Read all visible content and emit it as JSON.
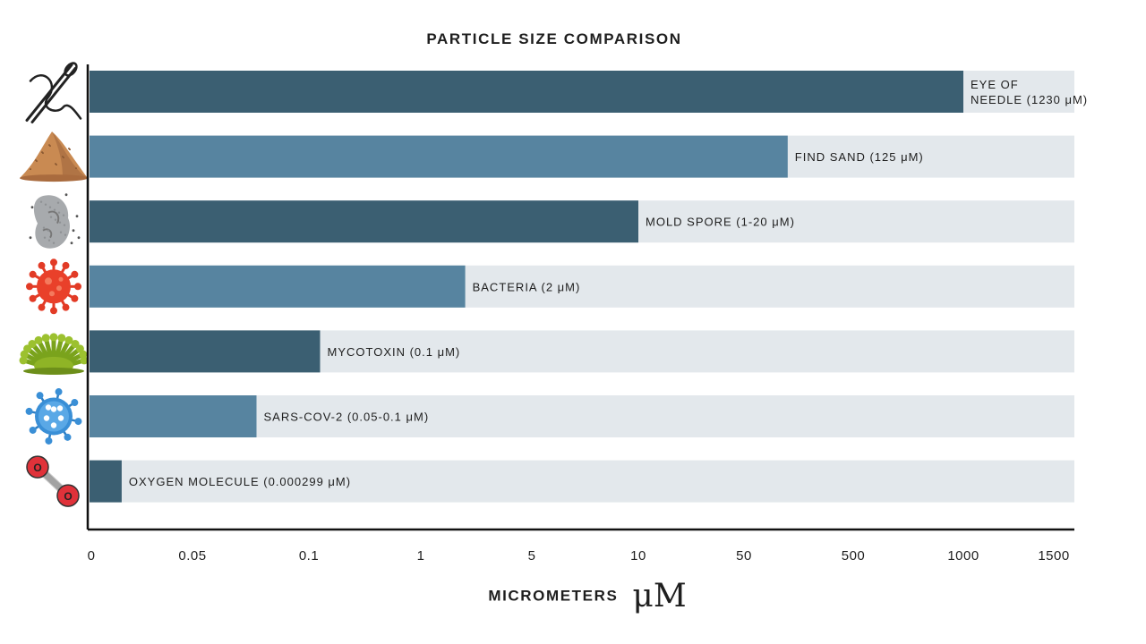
{
  "colors": {
    "dark": "#3b5f72",
    "light": "#5784a0",
    "track": "#e3e8ec",
    "axis": "#111111"
  },
  "chart_data": {
    "type": "bar",
    "orientation": "horizontal",
    "title": "PARTICLE SIZE COMPARISON",
    "xlabel": "MICROMETERS",
    "xunit": "μM",
    "ticks": [
      "0",
      "0.05",
      "0.1",
      "1",
      "5",
      "10",
      "50",
      "500",
      "1000",
      "1500"
    ],
    "xlim": [
      0,
      1500
    ],
    "scale": "ordinal-ticks",
    "categories": [
      "EYE OF NEEDLE (1230 μM)",
      "FIND SAND (125 μM)",
      "MOLD SPORE (1-20 μM)",
      "BACTERIA (2 μM)",
      "MYCOTOXIN (0.1 μM)",
      "SARS-COV-2 (0.05-0.1 μM)",
      "OXYGEN MOLECULE (0.000299 μM)"
    ],
    "bars": [
      {
        "label_lines": [
          "EYE OF",
          "NEEDLE (1230 μM)"
        ],
        "value": 1230,
        "tick_position": 8.0,
        "shade": "dark",
        "icon": "needle-thread-icon"
      },
      {
        "label_lines": [
          "FIND SAND (125 μM)"
        ],
        "value": 125,
        "tick_position": 6.4,
        "shade": "light",
        "icon": "sand-pile-icon"
      },
      {
        "label_lines": [
          "MOLD SPORE (1-20 μM)"
        ],
        "value": 20,
        "tick_position": 5.0,
        "shade": "dark",
        "icon": "mold-spore-icon"
      },
      {
        "label_lines": [
          "BACTERIA (2 μM)"
        ],
        "value": 2,
        "tick_position": 3.4,
        "shade": "light",
        "icon": "bacteria-icon"
      },
      {
        "label_lines": [
          "MYCOTOXIN (0.1 μM)"
        ],
        "value": 0.1,
        "tick_position": 2.1,
        "shade": "dark",
        "icon": "mycotoxin-icon"
      },
      {
        "label_lines": [
          "SARS-COV-2 (0.05-0.1 μM)"
        ],
        "value": 0.1,
        "tick_position": 1.55,
        "shade": "light",
        "icon": "virus-icon"
      },
      {
        "label_lines": [
          "OXYGEN MOLECULE (0.000299 μM)"
        ],
        "value": 0.000299,
        "tick_position": 0.3,
        "shade": "dark",
        "icon": "oxygen-molecule-icon"
      }
    ]
  },
  "molecule_atom_label": "O"
}
